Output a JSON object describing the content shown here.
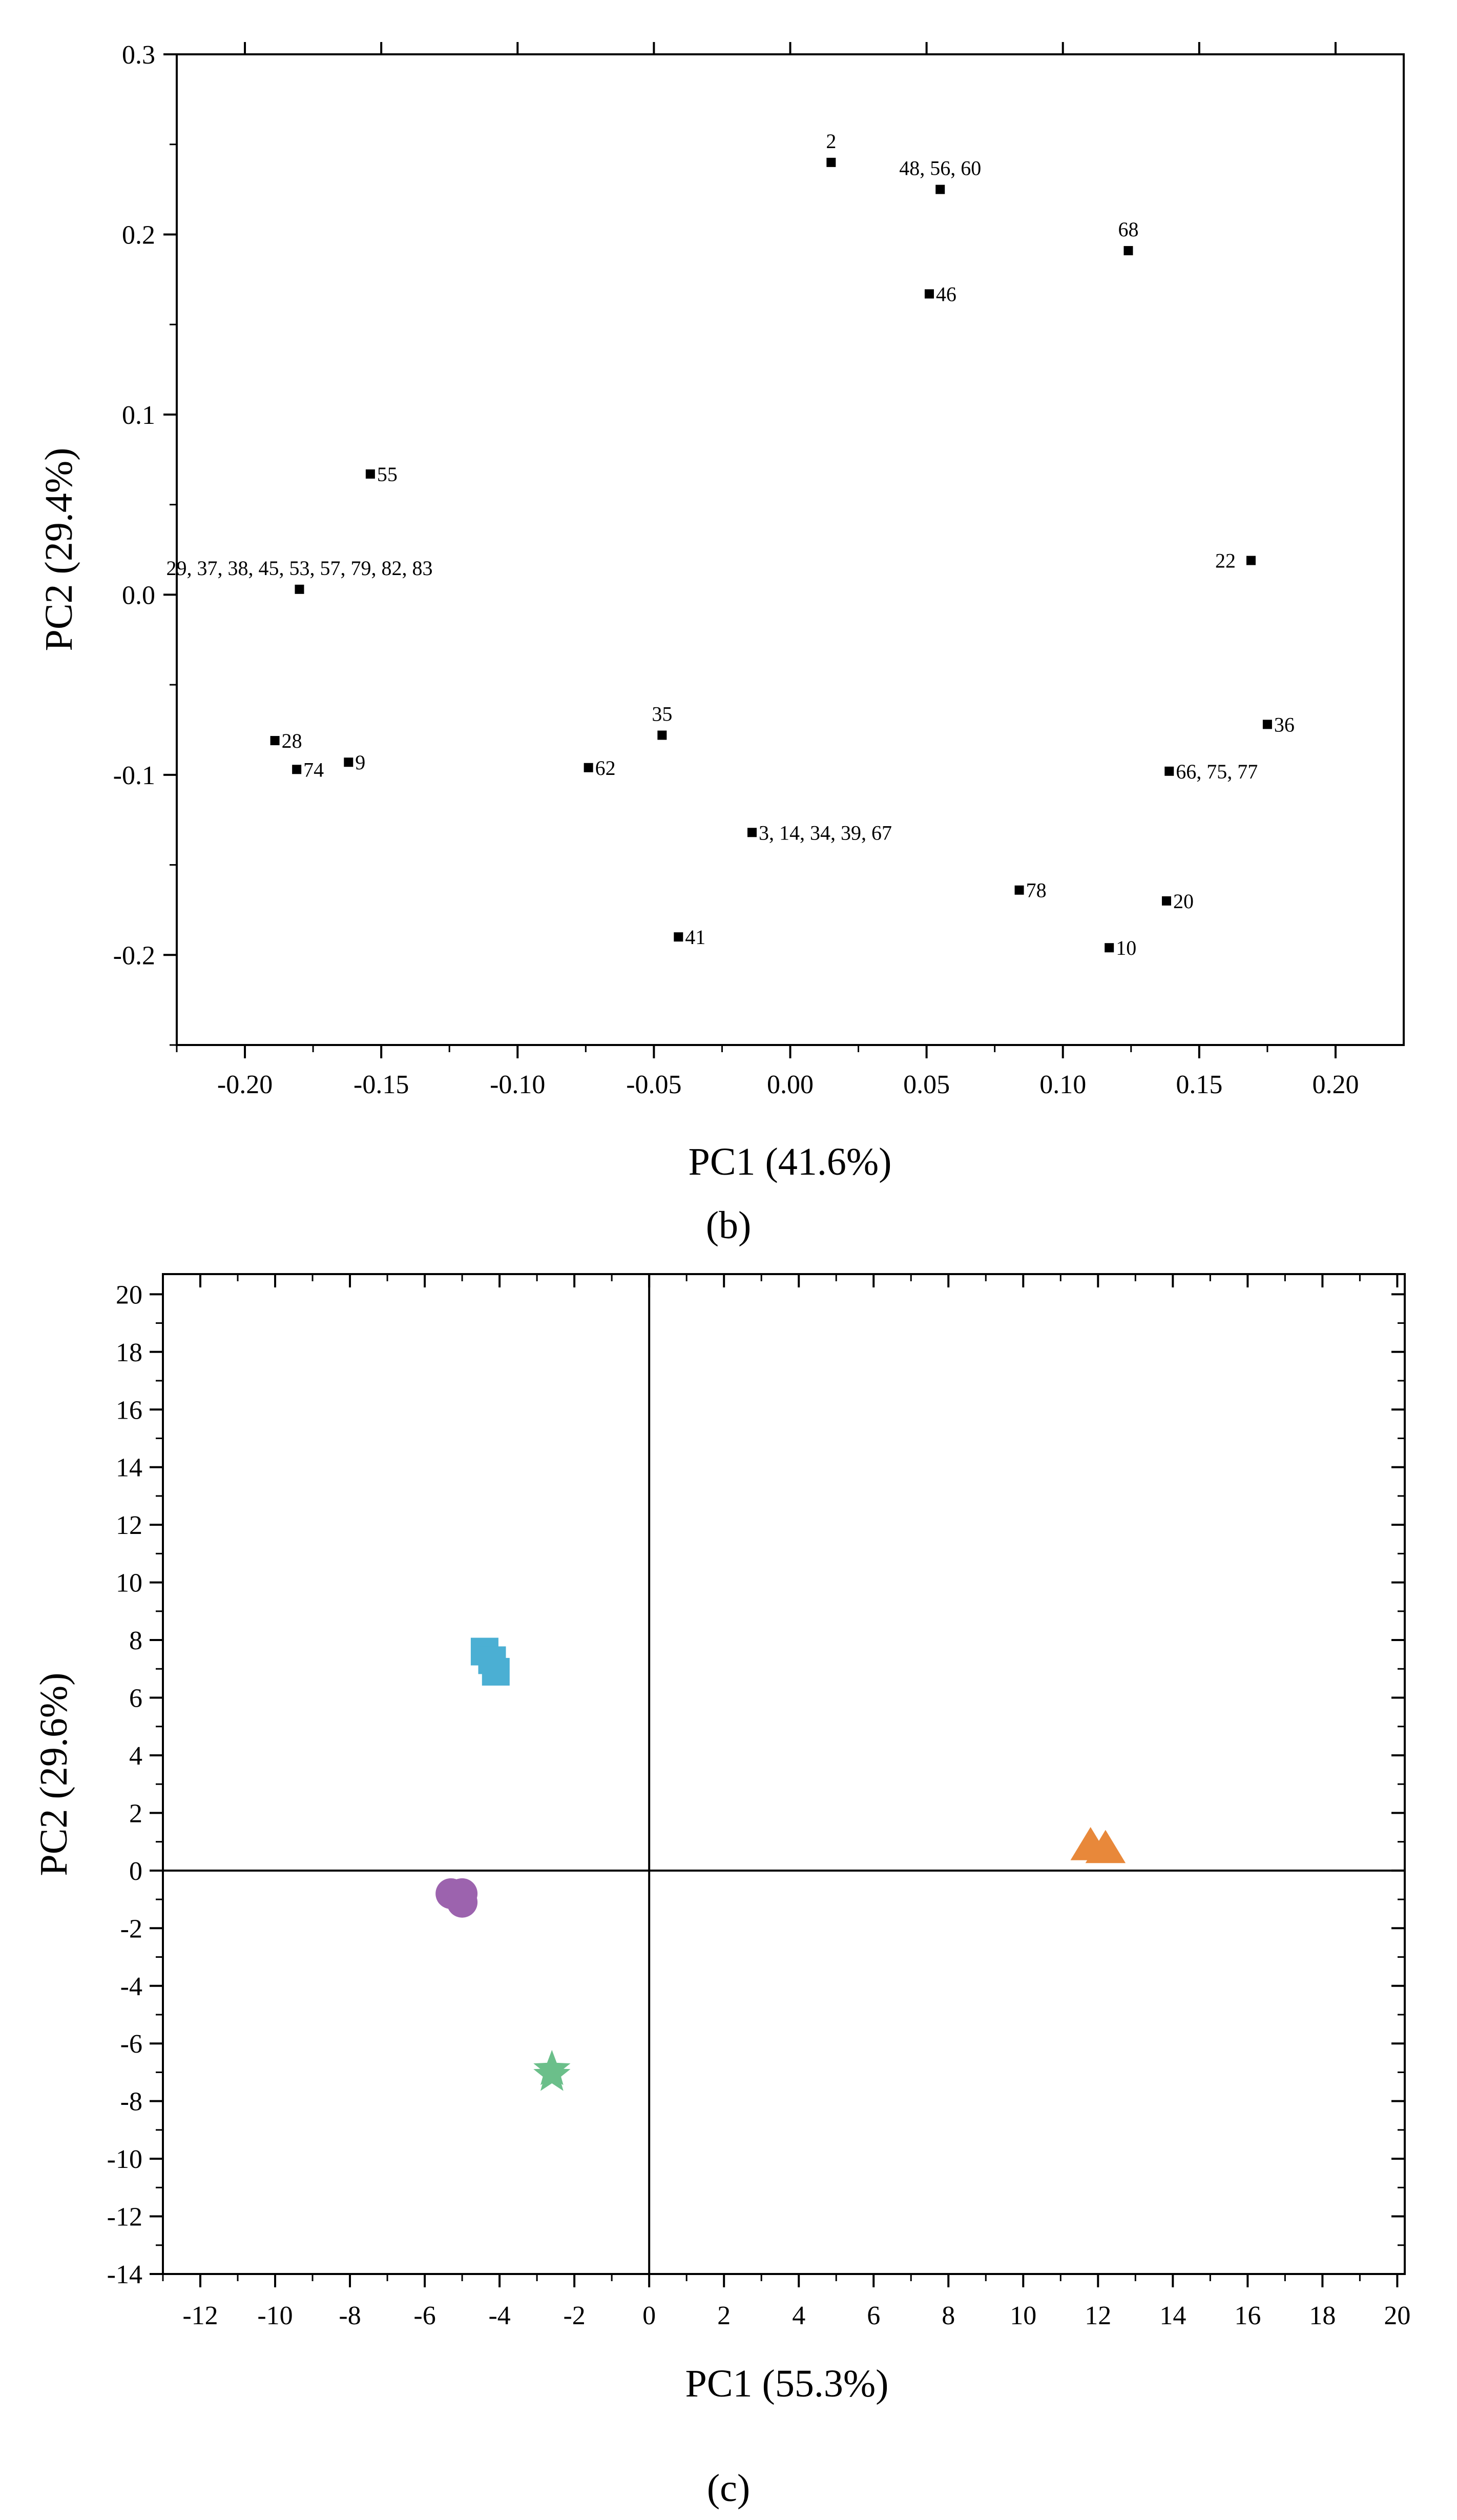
{
  "chart_data": [
    {
      "type": "scatter",
      "panel": "b",
      "caption": "(b)",
      "xlabel": "PC1 (41.6%)",
      "ylabel": "PC2 (29.4%)",
      "xlim": [
        -0.225,
        0.225
      ],
      "ylim": [
        -0.25,
        0.3
      ],
      "xticks": [
        -0.2,
        -0.15,
        -0.1,
        -0.05,
        0.0,
        0.05,
        0.1,
        0.15,
        0.2
      ],
      "xtick_labels": [
        "-0.20",
        "-0.15",
        "-0.10",
        "-0.05",
        "0.00",
        "0.05",
        "0.10",
        "0.15",
        "0.20"
      ],
      "yticks": [
        -0.2,
        -0.1,
        0.0,
        0.1,
        0.2,
        0.3
      ],
      "ytick_labels": [
        "-0.2",
        "-0.1",
        "0.0",
        "0.1",
        "0.2",
        "0.3"
      ],
      "points": [
        {
          "x": 0.015,
          "y": 0.24,
          "label": "2",
          "pos": "above"
        },
        {
          "x": 0.055,
          "y": 0.225,
          "label": "48, 56, 60",
          "pos": "above"
        },
        {
          "x": 0.124,
          "y": 0.191,
          "label": "68",
          "pos": "above"
        },
        {
          "x": 0.051,
          "y": 0.167,
          "label": "46",
          "pos": "right"
        },
        {
          "x": -0.154,
          "y": 0.067,
          "label": "55",
          "pos": "right"
        },
        {
          "x": -0.18,
          "y": 0.003,
          "label": "29, 37, 38, 45, 53, 57, 79, 82, 83",
          "pos": "above"
        },
        {
          "x": 0.169,
          "y": 0.019,
          "label": "22",
          "pos": "left"
        },
        {
          "x": -0.047,
          "y": -0.078,
          "label": "35",
          "pos": "above"
        },
        {
          "x": 0.175,
          "y": -0.072,
          "label": "36",
          "pos": "right"
        },
        {
          "x": -0.189,
          "y": -0.081,
          "label": "28",
          "pos": "right"
        },
        {
          "x": -0.181,
          "y": -0.097,
          "label": "74",
          "pos": "right"
        },
        {
          "x": -0.162,
          "y": -0.093,
          "label": "9",
          "pos": "right"
        },
        {
          "x": -0.074,
          "y": -0.096,
          "label": "62",
          "pos": "right"
        },
        {
          "x": 0.139,
          "y": -0.098,
          "label": "66, 75, 77",
          "pos": "right"
        },
        {
          "x": -0.014,
          "y": -0.132,
          "label": "3, 14, 34, 39, 67",
          "pos": "right"
        },
        {
          "x": 0.084,
          "y": -0.164,
          "label": "78",
          "pos": "right"
        },
        {
          "x": 0.138,
          "y": -0.17,
          "label": "20",
          "pos": "right"
        },
        {
          "x": -0.041,
          "y": -0.19,
          "label": "41",
          "pos": "right"
        },
        {
          "x": 0.117,
          "y": -0.196,
          "label": "10",
          "pos": "right"
        }
      ]
    },
    {
      "type": "scatter",
      "panel": "c",
      "caption": "(c)",
      "xlabel": "PC1 (55.3%)",
      "ylabel": "PC2 (29.6%)",
      "xlim": [
        -13,
        20.2
      ],
      "ylim": [
        -14,
        20.7
      ],
      "xticks": [
        -12,
        -10,
        -8,
        -6,
        -4,
        -2,
        0,
        2,
        4,
        6,
        8,
        10,
        12,
        14,
        16,
        18,
        20
      ],
      "xtick_labels": [
        "-12",
        "-10",
        "-8",
        "-6",
        "-4",
        "-2",
        "0",
        "2",
        "4",
        "6",
        "8",
        "10",
        "12",
        "14",
        "16",
        "18",
        "20"
      ],
      "yticks": [
        -14,
        -12,
        -10,
        -8,
        -6,
        -4,
        -2,
        0,
        2,
        4,
        6,
        8,
        10,
        12,
        14,
        16,
        18,
        20
      ],
      "ytick_labels": [
        "-14",
        "-12",
        "-10",
        "-8",
        "-6",
        "-4",
        "-2",
        "0",
        "2",
        "4",
        "6",
        "8",
        "10",
        "12",
        "14",
        "16",
        "18",
        "20"
      ],
      "zero_lines": true,
      "series": [
        {
          "name": "blue-squares",
          "marker": "square",
          "color": "#4BAFD3",
          "points": [
            {
              "x": -4.4,
              "y": 7.6
            },
            {
              "x": -4.2,
              "y": 7.3
            },
            {
              "x": -4.1,
              "y": 6.9
            }
          ]
        },
        {
          "name": "orange-triangles",
          "marker": "triangle",
          "color": "#E8883A",
          "points": [
            {
              "x": 11.8,
              "y": 0.8
            },
            {
              "x": 12.2,
              "y": 0.7
            }
          ]
        },
        {
          "name": "purple-circles",
          "marker": "circle",
          "color": "#9C63AE",
          "points": [
            {
              "x": -5.3,
              "y": -0.8
            },
            {
              "x": -5.0,
              "y": -0.8
            },
            {
              "x": -5.0,
              "y": -1.1
            }
          ]
        },
        {
          "name": "green-stars",
          "marker": "star",
          "color": "#6BBF8A",
          "points": [
            {
              "x": -2.6,
              "y": -6.9
            },
            {
              "x": -2.6,
              "y": -7.1
            }
          ]
        }
      ]
    }
  ]
}
